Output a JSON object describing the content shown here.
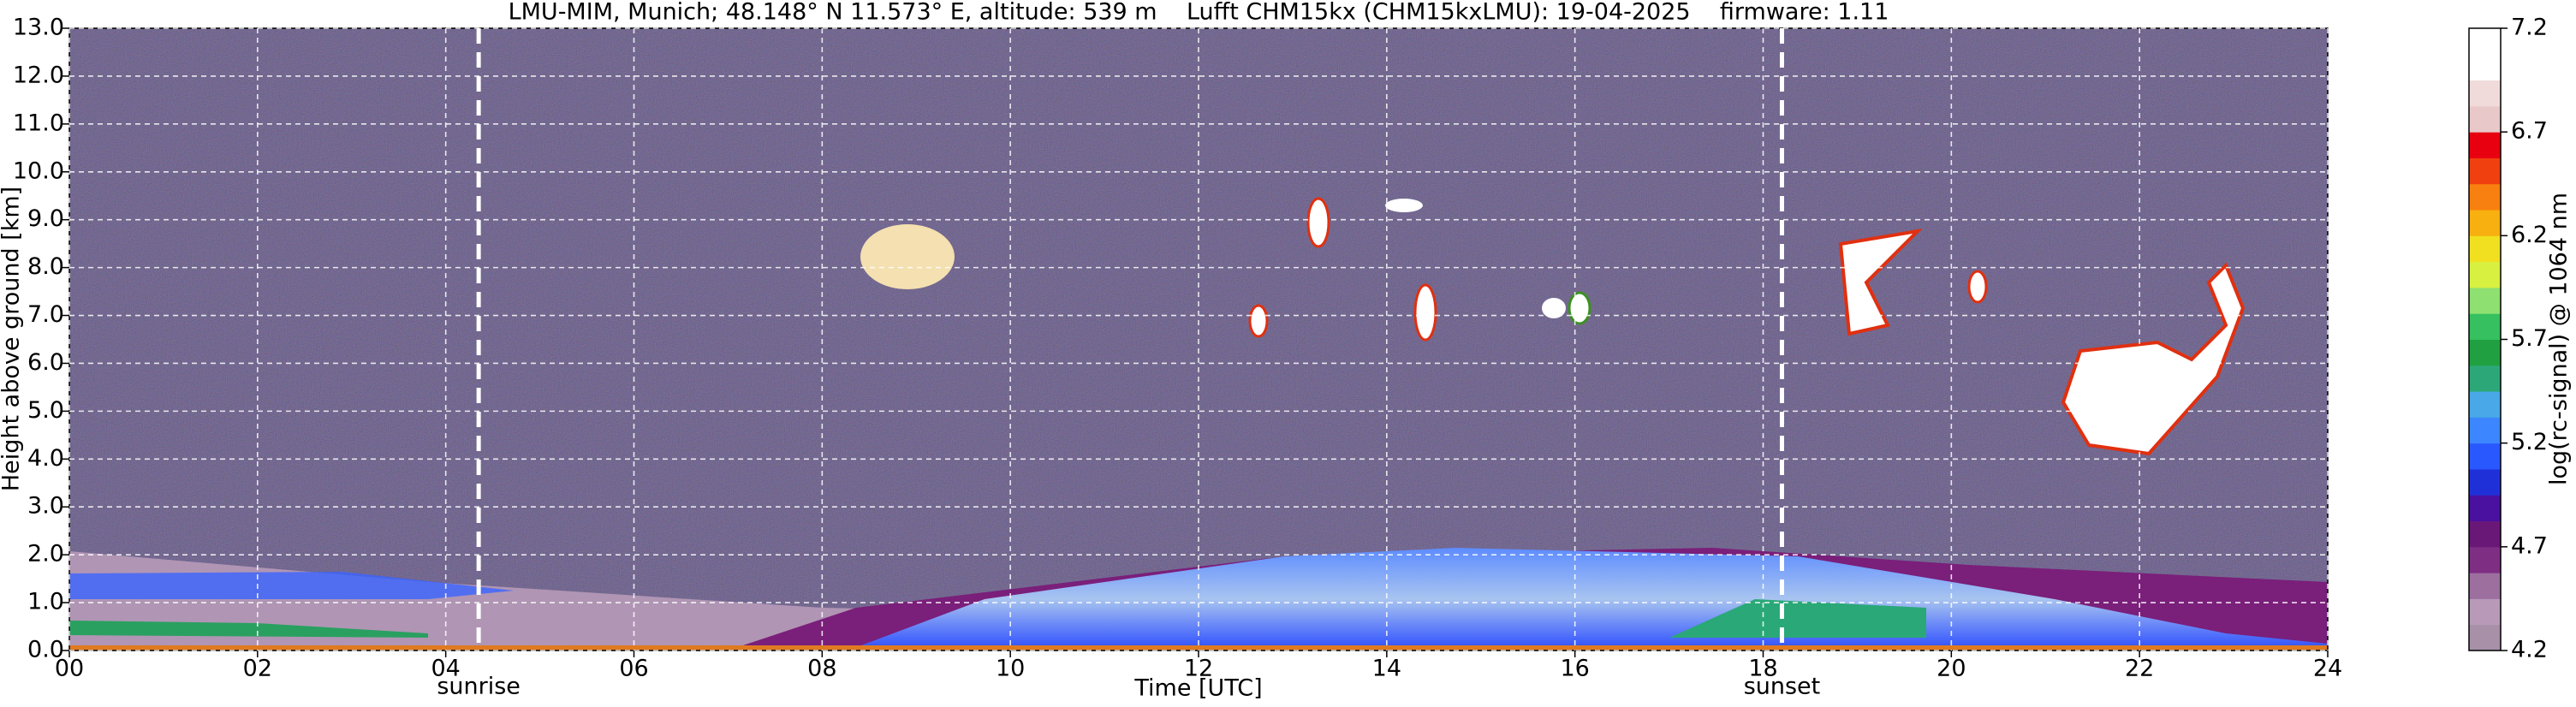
{
  "chart_data": {
    "type": "heatmap",
    "title": "LMU-MIM, Munich; 48.148° N 11.573° E, altitude: 539 m    Lufft CHM15kx (CHM15kxLMU): 19-04-2025    firmware: 1.11",
    "x_label": "Time [UTC]",
    "y_label": "Height above ground [km]",
    "xlim": [
      0,
      24
    ],
    "xticks": [
      {
        "value": 0,
        "label": "00"
      },
      {
        "value": 2,
        "label": "02"
      },
      {
        "value": 4,
        "label": "04"
      },
      {
        "value": 6,
        "label": "06"
      },
      {
        "value": 8,
        "label": "08"
      },
      {
        "value": 10,
        "label": "10"
      },
      {
        "value": 12,
        "label": "12"
      },
      {
        "value": 14,
        "label": "14"
      },
      {
        "value": 16,
        "label": "16"
      },
      {
        "value": 18,
        "label": "18"
      },
      {
        "value": 20,
        "label": "20"
      },
      {
        "value": 22,
        "label": "22"
      },
      {
        "value": 24,
        "label": "24"
      }
    ],
    "ylim": [
      0,
      13
    ],
    "yticks": [
      {
        "value": 0,
        "label": "0.0"
      },
      {
        "value": 1,
        "label": "1.0"
      },
      {
        "value": 2,
        "label": "2.0"
      },
      {
        "value": 3,
        "label": "3.0"
      },
      {
        "value": 4,
        "label": "4.0"
      },
      {
        "value": 5,
        "label": "5.0"
      },
      {
        "value": 6,
        "label": "6.0"
      },
      {
        "value": 7,
        "label": "7.0"
      },
      {
        "value": 8,
        "label": "8.0"
      },
      {
        "value": 9,
        "label": "9.0"
      },
      {
        "value": 10,
        "label": "10.0"
      },
      {
        "value": 11,
        "label": "11.0"
      },
      {
        "value": 12,
        "label": "12.0"
      },
      {
        "value": 13,
        "label": "13.0"
      }
    ],
    "grid": true,
    "annotations": [
      {
        "text": "sunrise",
        "x": 4.35
      },
      {
        "text": "sunset",
        "x": 18.2
      }
    ],
    "colorbar": {
      "label": "log(rc-signal) @ 1064 nm",
      "clim": [
        4.2,
        7.2
      ],
      "ticks": [
        4.2,
        4.7,
        5.2,
        5.7,
        6.2,
        6.7,
        7.2
      ],
      "colors": [
        "#a790a8",
        "#b89ab8",
        "#9c6f9f",
        "#7f2f83",
        "#6a1878",
        "#4a10a0",
        "#2030d8",
        "#2a58ff",
        "#3c86ff",
        "#48a8e8",
        "#2ca878",
        "#20a040",
        "#36c060",
        "#8ee070",
        "#d8f040",
        "#f0e020",
        "#f8b010",
        "#f88010",
        "#f04010",
        "#e80010",
        "#e8c8c8",
        "#f0dada",
        "#ffffff",
        "#ffffff"
      ]
    }
  }
}
